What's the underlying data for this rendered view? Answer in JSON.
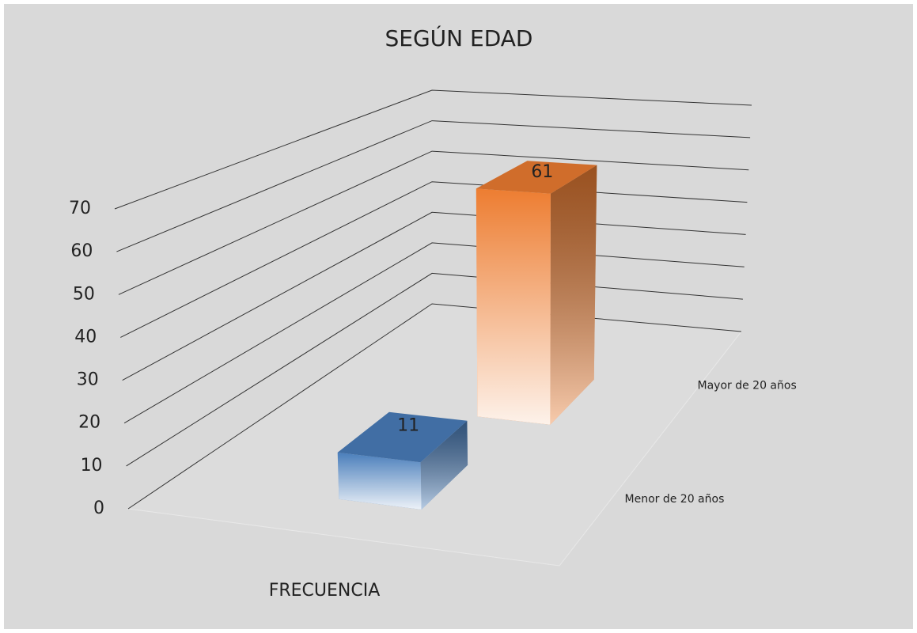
{
  "chart_data": {
    "type": "bar3d",
    "title": "SEGÚN EDAD",
    "categories": [
      "FRECUENCIA"
    ],
    "series": [
      {
        "name": "Menor de 20 años",
        "color": "#4a7ebb",
        "values": [
          11
        ]
      },
      {
        "name": "Mayor de 20 años",
        "color": "#ed7d31",
        "values": [
          61
        ]
      }
    ],
    "ylim": [
      0,
      70
    ],
    "yticks": [
      0,
      10,
      20,
      30,
      40,
      50,
      60,
      70
    ],
    "grid": true
  }
}
